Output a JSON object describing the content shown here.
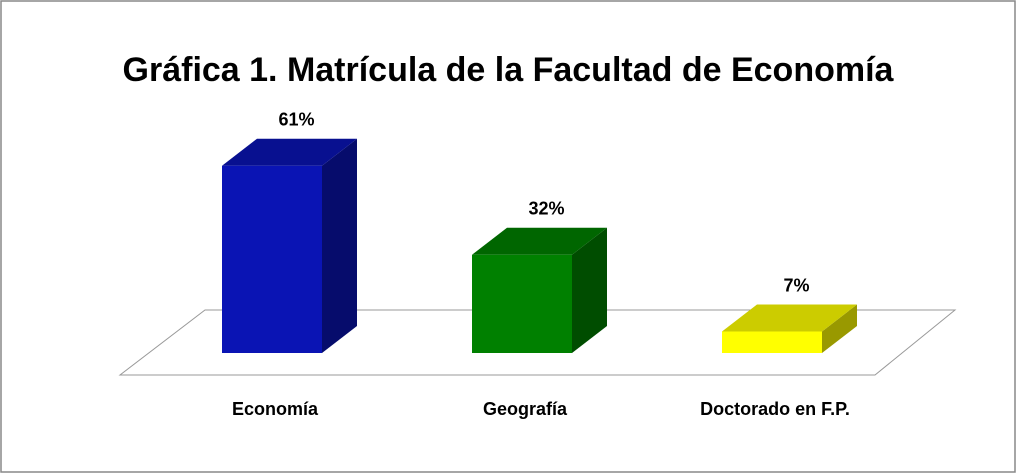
{
  "chart_data": {
    "type": "bar3d",
    "title": "Gráfica 1. Matrícula de la Facultad de Economía",
    "categories": [
      "Economía",
      "Geografía",
      "Doctorado en F.P."
    ],
    "values": [
      61,
      32,
      7
    ],
    "value_labels": [
      "61%",
      "32%",
      "7%"
    ],
    "colors": [
      "#0a14b4",
      "#008000",
      "#ffff00"
    ]
  }
}
